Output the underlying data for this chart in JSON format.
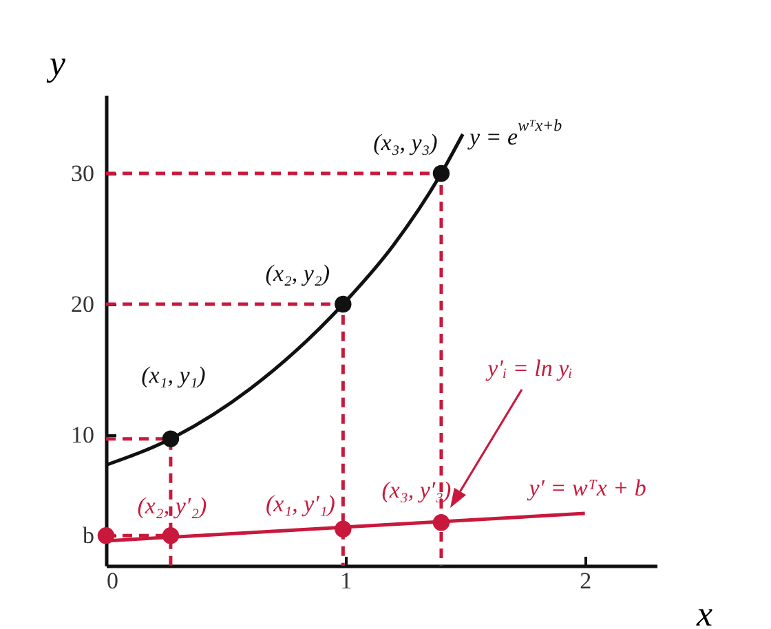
{
  "chart_data": {
    "type": "line",
    "xlabel": "x",
    "ylabel": "y",
    "xlim": [
      0,
      2.3
    ],
    "ylim": [
      0,
      36
    ],
    "xticks": [
      0,
      1,
      2
    ],
    "yticks": [
      {
        "value": 2.3,
        "label": "b"
      },
      10,
      20,
      30
    ],
    "grid": false,
    "series": [
      {
        "color": "#111111",
        "line_style": "solid",
        "marker": "none",
        "x": [
          0,
          0.27,
          0.6,
          0.99,
          1.2,
          1.4,
          1.49
        ],
        "values": [
          7.7,
          9.7,
          13.5,
          20,
          24.5,
          30,
          33
        ]
      },
      {
        "color": "#c8193c",
        "line_style": "solid",
        "marker": "none",
        "x": [
          0,
          2.0
        ],
        "values": [
          1.9,
          4.0
        ]
      },
      {
        "color": "#c8193c",
        "line_style": "dashed",
        "marker": "none",
        "x": [
          0,
          0.27,
          0.27
        ],
        "values": [
          9.7,
          9.7,
          0
        ]
      },
      {
        "color": "#c8193c",
        "line_style": "dashed",
        "marker": "none",
        "x": [
          0,
          0.99,
          0.99
        ],
        "values": [
          20,
          20,
          0
        ]
      },
      {
        "color": "#c8193c",
        "line_style": "dashed",
        "marker": "none",
        "x": [
          0,
          1.4,
          1.4
        ],
        "values": [
          30,
          30,
          0
        ]
      },
      {
        "color": "#c8193c",
        "line_style": "dashed",
        "marker": "none",
        "x": [
          0,
          0.27
        ],
        "values": [
          2.3,
          2.3
        ]
      },
      {
        "type": "scatter",
        "color": "#111111",
        "marker": "circle",
        "x": [
          0.27,
          0.99,
          1.4
        ],
        "values": [
          9.7,
          20,
          30
        ]
      },
      {
        "type": "scatter",
        "color": "#c8193c",
        "marker": "circle",
        "x": [
          0,
          0.27,
          0.99,
          1.4
        ],
        "values": [
          2.3,
          2.3,
          2.8,
          3.3
        ]
      }
    ],
    "annotations": [
      {
        "text": "(x₁, y₁)",
        "x": 0.27,
        "y": 9.7
      },
      {
        "text": "(x₂, y₂)",
        "x": 0.99,
        "y": 20
      },
      {
        "text": "(x₃, y₃)",
        "x": 1.4,
        "y": 30
      },
      "y = e$^{wᵀx+b}$",
      {
        "text": "(x₂, y′₂)",
        "x": 0.27,
        "y": 2.3
      },
      {
        "text": "(x₁, y′₁)",
        "x": 0.99,
        "y": 2.8
      },
      {
        "text": "(x₃, y′₃)",
        "x": 1.4,
        "y": 3.3
      },
      {
        "text": "y′ = wᵀx + b",
        "x": 2.0,
        "y": 4.0
      },
      "y′ᵢ = ln yᵢ"
    ]
  }
}
